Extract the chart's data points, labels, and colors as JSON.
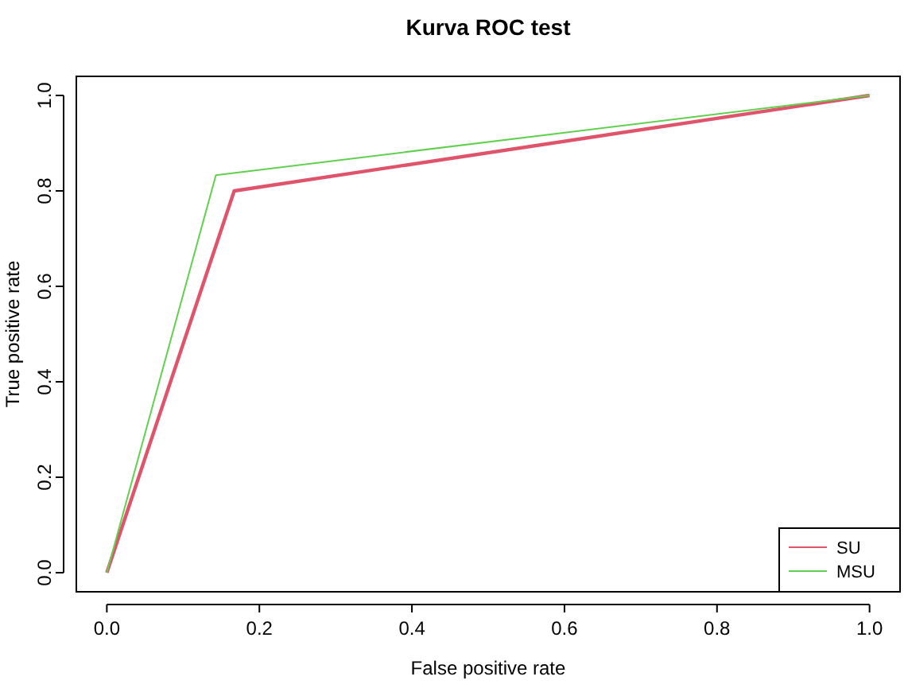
{
  "chart_data": {
    "type": "line",
    "title": "Kurva ROC test",
    "xlabel": "False positive rate",
    "ylabel": "True positive rate",
    "xlim": [
      -0.04,
      1.04
    ],
    "ylim": [
      -0.04,
      1.04
    ],
    "xticks": [
      {
        "value": 0,
        "label": "0.0"
      },
      {
        "value": 0.2,
        "label": "0.2"
      },
      {
        "value": 0.4,
        "label": "0.4"
      },
      {
        "value": 0.6,
        "label": "0.6"
      },
      {
        "value": 0.8,
        "label": "0.8"
      },
      {
        "value": 1,
        "label": "1.0"
      }
    ],
    "yticks": [
      {
        "value": 0,
        "label": "0.0"
      },
      {
        "value": 0.2,
        "label": "0.2"
      },
      {
        "value": 0.4,
        "label": "0.4"
      },
      {
        "value": 0.6,
        "label": "0.6"
      },
      {
        "value": 0.8,
        "label": "0.8"
      },
      {
        "value": 1,
        "label": "1.0"
      }
    ],
    "legend": "bottom right",
    "marker": "none",
    "line_style": "solid",
    "series": [
      {
        "name": "SU",
        "color": "#df536b",
        "x": [
          0,
          0.167,
          1
        ],
        "values": [
          0,
          0.8,
          1
        ]
      },
      {
        "name": "MSU",
        "color": "#61d04f",
        "x": [
          0,
          0.143,
          1
        ],
        "values": [
          0,
          0.833,
          1
        ]
      }
    ]
  }
}
